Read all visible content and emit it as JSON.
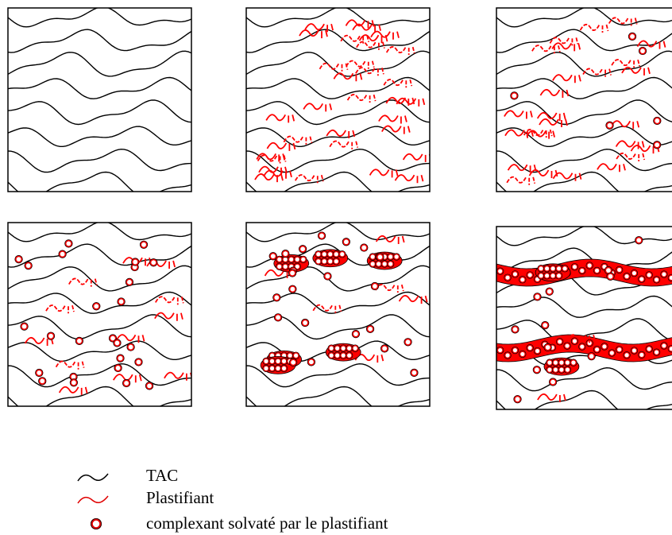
{
  "colors": {
    "polymer": "#000000",
    "plasticizer": "#ff0000",
    "complexant_fill": "#ffffff",
    "complexant_ring": "#b00000",
    "background": "#ffffff"
  },
  "panels": [
    {
      "id": "p1",
      "plasticizer_marks": 0,
      "complexant_count": 0,
      "aggregates": 0,
      "bands": 0
    },
    {
      "id": "p2",
      "plasticizer_marks": 34,
      "complexant_count": 0,
      "aggregates": 0,
      "bands": 0
    },
    {
      "id": "p3",
      "plasticizer_marks": 26,
      "complexant_count": 6,
      "aggregates": 0,
      "bands": 0
    },
    {
      "id": "p4",
      "plasticizer_marks": 12,
      "complexant_count": 26,
      "aggregates": 0,
      "bands": 0
    },
    {
      "id": "p5",
      "plasticizer_marks": 6,
      "complexant_count": 22,
      "aggregates": 6,
      "bands": 0
    },
    {
      "id": "p6",
      "plasticizer_marks": 2,
      "complexant_count": 12,
      "aggregates": 2,
      "bands": 2
    }
  ],
  "legend": {
    "items": [
      {
        "key": "tac",
        "label": "TAC",
        "icon": "black-wave-icon"
      },
      {
        "key": "plastifiant",
        "label": "Plastifiant",
        "icon": "red-wave-icon"
      },
      {
        "key": "complexant",
        "label": "complexant solvaté par le plastifiant",
        "icon": "ring-icon"
      }
    ]
  }
}
